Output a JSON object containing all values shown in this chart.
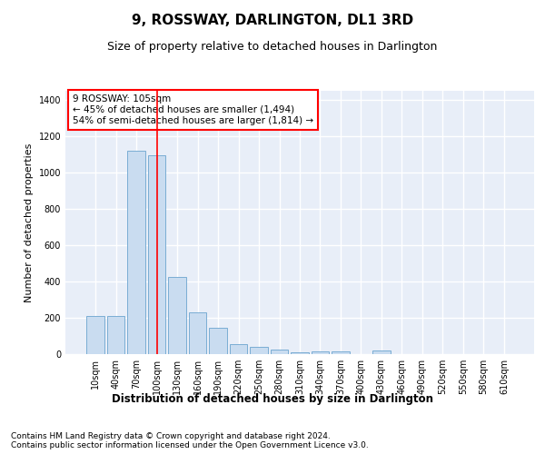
{
  "title": "9, ROSSWAY, DARLINGTON, DL1 3RD",
  "subtitle": "Size of property relative to detached houses in Darlington",
  "xlabel": "Distribution of detached houses by size in Darlington",
  "ylabel": "Number of detached properties",
  "bar_labels": [
    "10sqm",
    "40sqm",
    "70sqm",
    "100sqm",
    "130sqm",
    "160sqm",
    "190sqm",
    "220sqm",
    "250sqm",
    "280sqm",
    "310sqm",
    "340sqm",
    "370sqm",
    "400sqm",
    "430sqm",
    "460sqm",
    "490sqm",
    "520sqm",
    "550sqm",
    "580sqm",
    "610sqm"
  ],
  "bar_values": [
    210,
    210,
    1120,
    1095,
    425,
    230,
    145,
    57,
    38,
    25,
    10,
    15,
    15,
    0,
    18,
    0,
    0,
    0,
    0,
    0,
    0
  ],
  "bar_color": "#c9dcf0",
  "bar_edge_color": "#7aadd4",
  "vline_x": 3,
  "vline_color": "red",
  "annotation_text": "9 ROSSWAY: 105sqm\n← 45% of detached houses are smaller (1,494)\n54% of semi-detached houses are larger (1,814) →",
  "annotation_box_color": "white",
  "annotation_box_edge_color": "red",
  "ylim": [
    0,
    1450
  ],
  "yticks": [
    0,
    200,
    400,
    600,
    800,
    1000,
    1200,
    1400
  ],
  "background_color": "#e8eef8",
  "grid_color": "white",
  "footer_text": "Contains HM Land Registry data © Crown copyright and database right 2024.\nContains public sector information licensed under the Open Government Licence v3.0.",
  "title_fontsize": 11,
  "subtitle_fontsize": 9,
  "xlabel_fontsize": 8.5,
  "ylabel_fontsize": 8,
  "tick_fontsize": 7,
  "annotation_fontsize": 7.5,
  "footer_fontsize": 6.5
}
